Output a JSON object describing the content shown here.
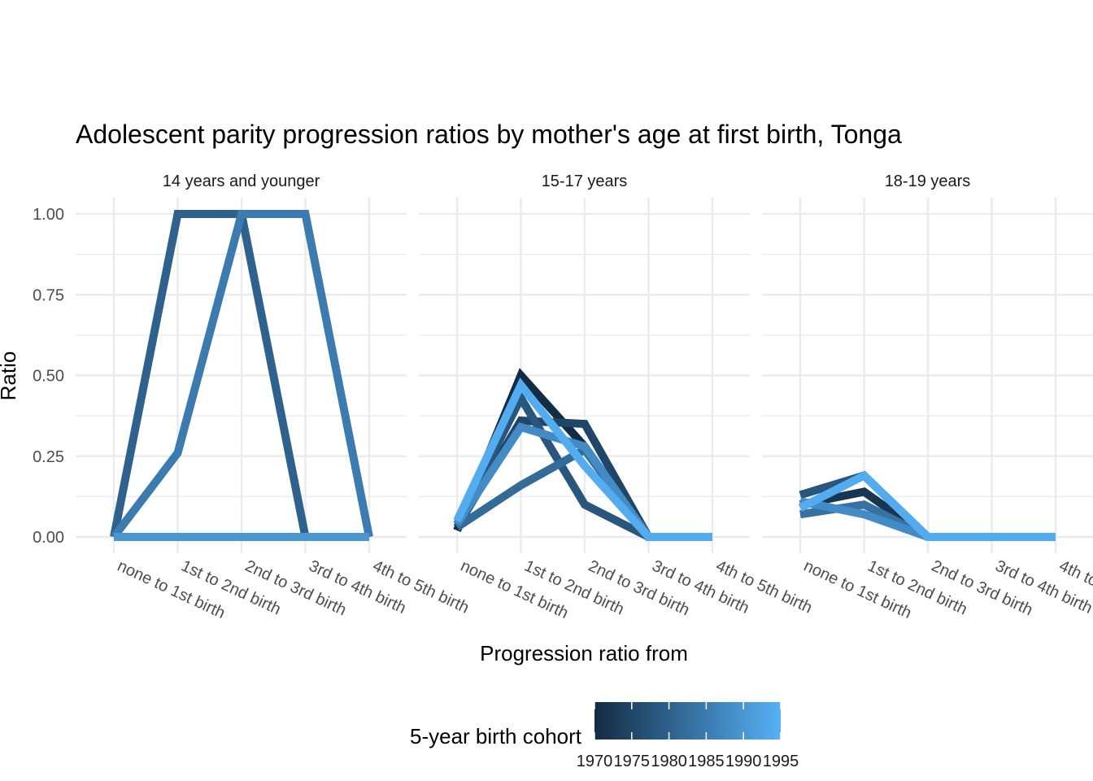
{
  "chart_data": {
    "type": "line",
    "title": "Adolescent parity progression ratios by mother's age at first birth,  Tonga",
    "xlabel": "Progression ratio from",
    "ylabel": "Ratio",
    "ylim": [
      0,
      1
    ],
    "y_ticks": [
      "0.00",
      "0.25",
      "0.50",
      "0.75",
      "1.00"
    ],
    "categories": [
      "none to 1st birth",
      "1st to 2nd birth",
      "2nd to 3rd birth",
      "3rd to 4th birth",
      "4th to 5th birth"
    ],
    "grid": true,
    "legend": {
      "title": "5-year birth cohort",
      "placement": "bottom",
      "type": "colorbar",
      "range": [
        1970,
        1995
      ],
      "ticks": [
        "1970",
        "1975",
        "1980",
        "1985",
        "1990",
        "1995"
      ],
      "color_low": "#132B43",
      "color_high": "#56B1F7"
    },
    "panels": [
      {
        "label": "14 years and younger",
        "series": [
          {
            "cohort": 1980,
            "values": [
              0,
              1,
              1,
              0,
              0
            ]
          },
          {
            "cohort": 1985,
            "values": [
              0,
              0.26,
              1,
              1,
              0
            ]
          },
          {
            "cohort": 1990,
            "values": [
              0,
              0,
              0,
              0,
              0
            ]
          }
        ]
      },
      {
        "label": "15-17 years",
        "series": [
          {
            "cohort": 1970,
            "values": [
              0.02,
              0.5,
              0.28,
              0,
              0
            ]
          },
          {
            "cohort": 1975,
            "values": [
              0.03,
              0.36,
              0.35,
              0,
              0
            ]
          },
          {
            "cohort": 1978,
            "values": [
              0.04,
              0.43,
              0.1,
              0,
              0
            ]
          },
          {
            "cohort": 1982,
            "values": [
              0.03,
              0.16,
              0.27,
              0,
              0
            ]
          },
          {
            "cohort": 1988,
            "values": [
              0.04,
              0.34,
              0.28,
              0,
              0
            ]
          },
          {
            "cohort": 1994,
            "values": [
              0.05,
              0.47,
              0.22,
              0,
              0
            ]
          }
        ]
      },
      {
        "label": "18-19 years",
        "series": [
          {
            "cohort": 1972,
            "values": [
              0.1,
              0.14,
              0,
              0,
              0
            ]
          },
          {
            "cohort": 1978,
            "values": [
              0.13,
              0.19,
              0,
              0,
              0
            ]
          },
          {
            "cohort": 1983,
            "values": [
              0.07,
              0.1,
              0,
              0,
              0
            ]
          },
          {
            "cohort": 1988,
            "values": [
              0.11,
              0.07,
              0,
              0,
              0
            ]
          },
          {
            "cohort": 1994,
            "values": [
              0.09,
              0.19,
              0,
              0,
              0
            ]
          }
        ]
      }
    ]
  }
}
